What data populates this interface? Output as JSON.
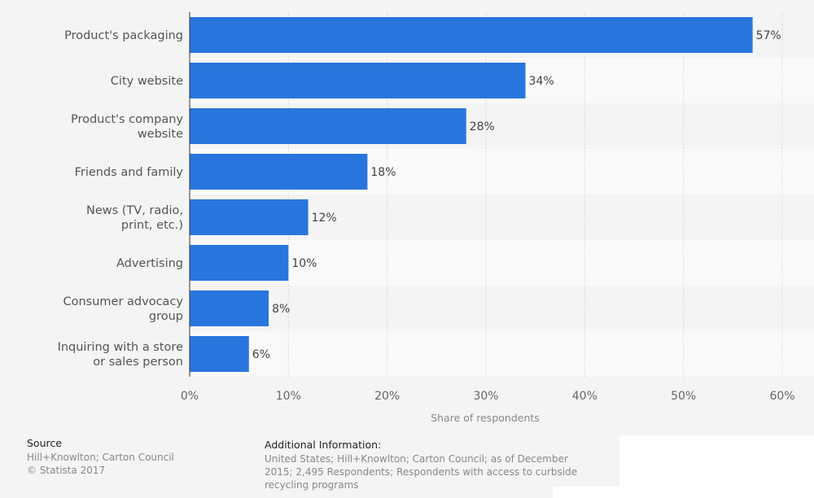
{
  "chart_data": {
    "type": "bar",
    "orientation": "horizontal",
    "categories": [
      "Product's packaging",
      "City website",
      "Product's company website",
      "Friends and family",
      "News (TV, radio, print, etc.)",
      "Advertising",
      "Consumer advocacy group",
      "Inquiring with a store or sales person"
    ],
    "category_lines": [
      [
        "Product's packaging"
      ],
      [
        "City website"
      ],
      [
        "Product's company",
        "website"
      ],
      [
        "Friends and family"
      ],
      [
        "News (TV, radio,",
        "print, etc.)"
      ],
      [
        "Advertising"
      ],
      [
        "Consumer advocacy",
        "group"
      ],
      [
        "Inquiring with a store",
        "or sales person"
      ]
    ],
    "values": [
      57,
      34,
      28,
      18,
      12,
      10,
      8,
      6
    ],
    "value_labels": [
      "57%",
      "34%",
      "28%",
      "18%",
      "12%",
      "10%",
      "8%",
      "6%"
    ],
    "xlim": [
      0,
      60
    ],
    "ticks": [
      0,
      10,
      20,
      30,
      40,
      50,
      60
    ],
    "tick_labels": [
      "0%",
      "10%",
      "20%",
      "30%",
      "40%",
      "50%",
      "60%"
    ],
    "xlabel": "Share of respondents",
    "ylabel": "",
    "title": "",
    "grid": true,
    "colors": {
      "bar": "#2876dd",
      "band_light": "#f9f9f9",
      "band_dark": "#f4f4f4",
      "grid": "#c8c8c8",
      "axis": "#333333"
    }
  },
  "footer": {
    "source_title": "Source",
    "source_lines": [
      "Hill+Knowlton; Carton Council",
      "© Statista 2017"
    ],
    "info_title": "Additional Information:",
    "info_lines": [
      "United States; Hill+Knowlton; Carton Council; as of December",
      "2015; 2,495 Respondents; Respondents with access to curbside",
      "recycling programs"
    ]
  }
}
